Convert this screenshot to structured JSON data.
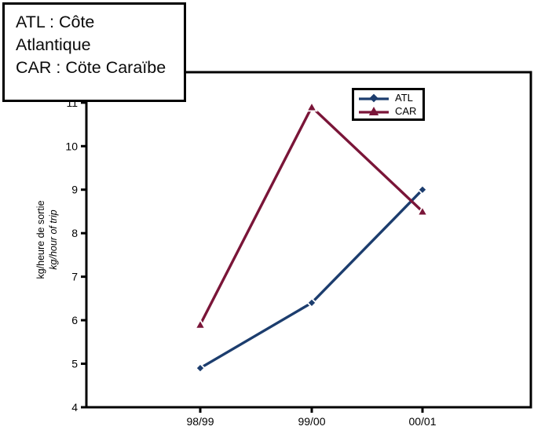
{
  "annotation_box": {
    "lines": [
      "ATL : Côte",
      "Atlantique",
      "CAR : Cöte Caraïbe"
    ]
  },
  "chart_data": {
    "type": "line",
    "title": "",
    "categories": [
      "98/99",
      "99/00",
      "00/01"
    ],
    "series": [
      {
        "name": "ATL",
        "color": "#1c3d6e",
        "marker": "diamond",
        "values": [
          4.9,
          6.4,
          9.0
        ]
      },
      {
        "name": "CAR",
        "color": "#7a1538",
        "marker": "triangle",
        "values": [
          5.9,
          10.9,
          8.5
        ]
      }
    ],
    "ylabel_fr": "kg/heure de sortie",
    "ylabel_en": "kg/hour of trip",
    "xlabel": "",
    "yticks": [
      4,
      5,
      6,
      7,
      8,
      9,
      10,
      11
    ],
    "ylim": [
      4,
      11.7
    ],
    "grid": false,
    "legend_position": "top-right",
    "axis_color": "#000000",
    "background": "#ffffff"
  }
}
